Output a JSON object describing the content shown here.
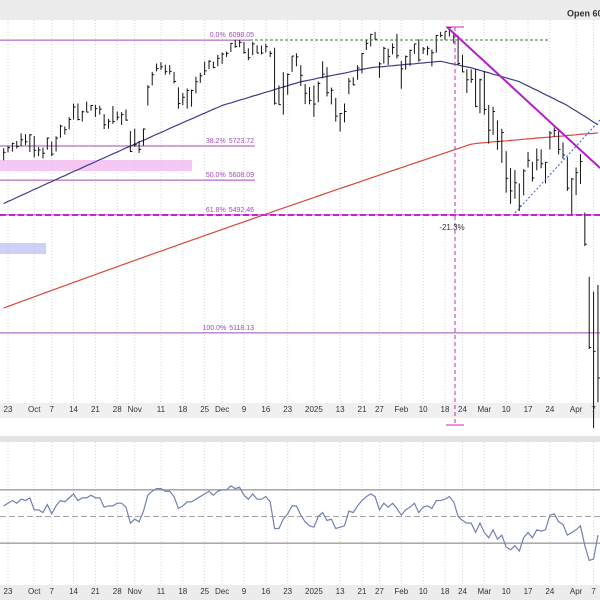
{
  "chart_data": [
    {
      "type": "ohlc",
      "header_label": "Open 60",
      "log_scale": true,
      "grid": true,
      "color": "#111111",
      "ylim": [
        4815,
        6246
      ],
      "categories": [
        null,
        "23",
        null,
        null,
        null,
        null,
        null,
        "Oct",
        null,
        null,
        null,
        "7",
        null,
        null,
        null,
        null,
        "14",
        null,
        null,
        null,
        null,
        "21",
        null,
        null,
        null,
        null,
        "28",
        null,
        null,
        null,
        "Nov",
        null,
        null,
        null,
        null,
        null,
        "11",
        null,
        null,
        null,
        null,
        "18",
        null,
        null,
        null,
        null,
        "25",
        null,
        null,
        null,
        "Dec",
        null,
        null,
        null,
        null,
        "9",
        null,
        null,
        null,
        null,
        "16",
        null,
        null,
        null,
        null,
        "23",
        null,
        null,
        null,
        null,
        null,
        "2025",
        null,
        null,
        null,
        null,
        null,
        "13",
        null,
        null,
        null,
        null,
        "21",
        null,
        null,
        null,
        "27",
        null,
        null,
        null,
        null,
        "Feb",
        null,
        null,
        null,
        null,
        "10",
        null,
        null,
        null,
        null,
        "18",
        null,
        null,
        null,
        "24",
        null,
        null,
        null,
        null,
        "Mar",
        null,
        null,
        null,
        null,
        "10",
        null,
        null,
        null,
        null,
        "17",
        null,
        null,
        null,
        null,
        "24",
        null,
        null,
        null,
        null,
        null,
        "Apr",
        null,
        null,
        null,
        "7",
        null
      ],
      "high": [
        5716,
        5725,
        5735,
        5741,
        5767,
        5764,
        5765,
        5758,
        5720,
        5718,
        5753,
        5739,
        5757,
        5797,
        5791,
        5823,
        5871,
        5871,
        5846,
        5878,
        5866,
        5866,
        5863,
        5834,
        5817,
        5862,
        5843,
        5841,
        5850,
        5775,
        5783,
        5741,
        5784,
        5936,
        5983,
        6013,
        6018,
        6009,
        6008,
        5983,
        5928,
        5908,
        5924,
        5920,
        5966,
        5980,
        6020,
        6025,
        6020,
        6044,
        6053,
        6056,
        6087,
        6099,
        6099,
        6091,
        6068,
        6092,
        6079,
        6078,
        6085,
        6058,
        6070,
        5935,
        5982,
        5978,
        6040,
        6050,
        6007,
        5940,
        5929,
        5935,
        5949,
        6021,
        6000,
        5927,
        5891,
        5837,
        5871,
        5961,
        5964,
        6007,
        6051,
        6101,
        6120,
        6128,
        6018,
        6074,
        6067,
        6086,
        6121,
        6022,
        6042,
        6063,
        6084,
        6101,
        6073,
        6076,
        6064,
        6116,
        6128,
        6129,
        6145,
        6119,
        6115,
        6044,
        5992,
        5992,
        5994,
        5959,
        5987,
        5866,
        5860,
        5812,
        5783,
        5706,
        5649,
        5642,
        5597,
        5645,
        5703,
        5670,
        5715,
        5712,
        5669,
        5775,
        5787,
        5782,
        5736,
        5686,
        5615,
        5650,
        5696,
        5500,
        5293,
        5246,
        5267
      ],
      "low": [
        5675,
        5702,
        5704,
        5715,
        5722,
        5727,
        5703,
        5685,
        5689,
        5681,
        5711,
        5689,
        5705,
        5752,
        5763,
        5781,
        5815,
        5812,
        5808,
        5840,
        5846,
        5824,
        5832,
        5782,
        5783,
        5800,
        5812,
        5796,
        5811,
        5703,
        5721,
        5700,
        5725,
        5864,
        5935,
        5985,
        5990,
        5973,
        5974,
        5942,
        5853,
        5865,
        5853,
        5860,
        5907,
        5944,
        5972,
        5993,
        5996,
        6003,
        6012,
        6037,
        6055,
        6070,
        6072,
        6048,
        6025,
        6043,
        6050,
        6046,
        6053,
        6037,
        5867,
        5866,
        5832,
        5902,
        5983,
        6003,
        5933,
        5869,
        5868,
        5824,
        5876,
        5960,
        5896,
        5868,
        5808,
        5773,
        5805,
        5904,
        5935,
        5955,
        5978,
        6062,
        6075,
        6100,
        5962,
        6013,
        6008,
        6046,
        6031,
        5923,
        5991,
        6005,
        6048,
        6020,
        6048,
        6043,
        6003,
        6052,
        6108,
        6099,
        6111,
        6086,
        6008,
        5982,
        5908,
        5944,
        5858,
        5837,
        5832,
        5732,
        5762,
        5711,
        5666,
        5566,
        5529,
        5546,
        5505,
        5557,
        5651,
        5603,
        5641,
        5648,
        5597,
        5712,
        5755,
        5695,
        5680,
        5572,
        5489,
        5558,
        5595,
        5391,
        5069,
        4835,
        4910
      ],
      "close": [
        5702,
        5718,
        5732,
        5722,
        5745,
        5738,
        5762,
        5709,
        5710,
        5699,
        5751,
        5696,
        5751,
        5792,
        5780,
        5815,
        5859,
        5815,
        5842,
        5841,
        5864,
        5853,
        5851,
        5797,
        5809,
        5808,
        5823,
        5832,
        5813,
        5705,
        5728,
        5712,
        5782,
        5929,
        5973,
        5995,
        6001,
        5984,
        5985,
        5949,
        5871,
        5893,
        5917,
        5917,
        5948,
        5969,
        5987,
        6021,
        5999,
        6032,
        6047,
        6050,
        6086,
        6075,
        6090,
        6053,
        6034,
        6084,
        6051,
        6051,
        6074,
        6050,
        5872,
        5867,
        5931,
        5974,
        6040,
        6037,
        5971,
        5907,
        5882,
        5869,
        5942,
        5975,
        5909,
        5918,
        5827,
        5836,
        5843,
        5950,
        5937,
        5997,
        6049,
        6086,
        6119,
        6101,
        6012,
        6068,
        6039,
        6071,
        6041,
        5994,
        6038,
        6061,
        6084,
        6026,
        6066,
        6068,
        6052,
        6115,
        6115,
        6130,
        6144,
        6118,
        6013,
        5983,
        5955,
        5956,
        5861,
        5955,
        5850,
        5778,
        5843,
        5739,
        5770,
        5614,
        5572,
        5599,
        5522,
        5639,
        5675,
        5615,
        5676,
        5663,
        5668,
        5768,
        5777,
        5712,
        5693,
        5581,
        5612,
        5633,
        5671,
        5397,
        5074,
        5062,
        4982
      ],
      "moving_averages": [
        {
          "color": "#3d3d8c",
          "values": [
            5530,
            5537,
            5543,
            5550,
            5557,
            5563,
            5570,
            5577,
            5583,
            5590,
            5597,
            5603,
            5610,
            5617,
            5623,
            5630,
            5637,
            5643,
            5650,
            5657,
            5663,
            5670,
            5677,
            5683,
            5690,
            5697,
            5703,
            5710,
            5717,
            5723,
            5730,
            5737,
            5743,
            5750,
            5757,
            5764,
            5770,
            5777,
            5784,
            5791,
            5797,
            5804,
            5811,
            5817,
            5824,
            5831,
            5837,
            5844,
            5851,
            5857,
            5864,
            5869,
            5873,
            5878,
            5883,
            5887,
            5892,
            5897,
            5901,
            5906,
            5911,
            5915,
            5920,
            5925,
            5929,
            5934,
            5939,
            5943,
            5948,
            5951,
            5954,
            5957,
            5961,
            5964,
            5967,
            5970,
            5973,
            5976,
            5979,
            5982,
            5986,
            5989,
            5992,
            5995,
            5998,
            6000,
            6001,
            6002,
            6004,
            6005,
            6007,
            6008,
            6010,
            6011,
            6012,
            6014,
            6015,
            6017,
            6018,
            6020,
            6021,
            6018,
            6014,
            6011,
            6008,
            6004,
            6001,
            5998,
            5993,
            5989,
            5984,
            5980,
            5975,
            5971,
            5966,
            5962,
            5957,
            5953,
            5948,
            5940,
            5933,
            5925,
            5918,
            5910,
            5902,
            5895,
            5887,
            5879,
            5872,
            5864,
            5854,
            5845,
            5835,
            5826,
            5816,
            5806,
            5797
          ]
        },
        {
          "color": "#d9483b",
          "values": [
            5195,
            5200,
            5205,
            5210,
            5215,
            5220,
            5225,
            5230,
            5235,
            5240,
            5245,
            5250,
            5255,
            5260,
            5265,
            5270,
            5275,
            5280,
            5285,
            5290,
            5295,
            5300,
            5305,
            5310,
            5315,
            5320,
            5325,
            5330,
            5335,
            5340,
            5345,
            5350,
            5355,
            5360,
            5365,
            5370,
            5375,
            5380,
            5385,
            5390,
            5395,
            5400,
            5405,
            5410,
            5415,
            5420,
            5425,
            5430,
            5435,
            5440,
            5445,
            5450,
            5455,
            5460,
            5465,
            5470,
            5475,
            5480,
            5485,
            5490,
            5495,
            5500,
            5505,
            5510,
            5515,
            5520,
            5525,
            5530,
            5535,
            5540,
            5545,
            5550,
            5555,
            5560,
            5565,
            5570,
            5575,
            5580,
            5585,
            5590,
            5595,
            5600,
            5605,
            5610,
            5615,
            5620,
            5625,
            5630,
            5635,
            5640,
            5645,
            5650,
            5655,
            5660,
            5665,
            5670,
            5675,
            5680,
            5685,
            5690,
            5695,
            5700,
            5705,
            5710,
            5715,
            5720,
            5725,
            5730,
            5732,
            5734,
            5735,
            5736,
            5738,
            5739,
            5740,
            5741,
            5743,
            5744,
            5745,
            5747,
            5748,
            5749,
            5751,
            5752,
            5753,
            5754,
            5756,
            5757,
            5758,
            5760,
            5761,
            5762,
            5764,
            5765,
            5766,
            5767,
            5769
          ]
        }
      ],
      "fib_color": "#a24bb8",
      "fib_levels": [
        {
          "label": "0.0%",
          "value": 6098.05
        },
        {
          "label": "38.2%",
          "value": 5723.72
        },
        {
          "label": "50.0%",
          "value": 5608.09
        },
        {
          "label": "61.8%",
          "value": 5492.46
        },
        {
          "label": "100.0%",
          "value": 5118.13
        }
      ],
      "annotations": [
        {
          "text": "-21.3%"
        }
      ]
    },
    {
      "type": "line",
      "color": "#7180b5",
      "ylim": [
        0,
        100
      ],
      "levels": [
        70,
        50,
        30
      ],
      "values": [
        58,
        60,
        62,
        60,
        63,
        62,
        64,
        55,
        55,
        53,
        59,
        52,
        58,
        62,
        61,
        64,
        67,
        62,
        64,
        64,
        66,
        64,
        64,
        57,
        58,
        58,
        60,
        60,
        57,
        45,
        48,
        46,
        54,
        66,
        69,
        71,
        71,
        69,
        69,
        65,
        56,
        58,
        61,
        61,
        63,
        65,
        67,
        69,
        66,
        69,
        70,
        70,
        73,
        71,
        72,
        66,
        63,
        67,
        63,
        63,
        65,
        61,
        41,
        41,
        48,
        52,
        58,
        58,
        51,
        46,
        43,
        42,
        50,
        53,
        47,
        48,
        41,
        42,
        43,
        54,
        53,
        58,
        62,
        65,
        67,
        65,
        55,
        60,
        57,
        60,
        56,
        51,
        55,
        57,
        60,
        53,
        57,
        58,
        56,
        62,
        62,
        63,
        65,
        61,
        50,
        47,
        45,
        45,
        38,
        45,
        38,
        34,
        40,
        33,
        36,
        27,
        25,
        28,
        24,
        34,
        38,
        34,
        40,
        39,
        40,
        51,
        52,
        46,
        44,
        36,
        38,
        40,
        43,
        28,
        17,
        18,
        36
      ]
    }
  ]
}
